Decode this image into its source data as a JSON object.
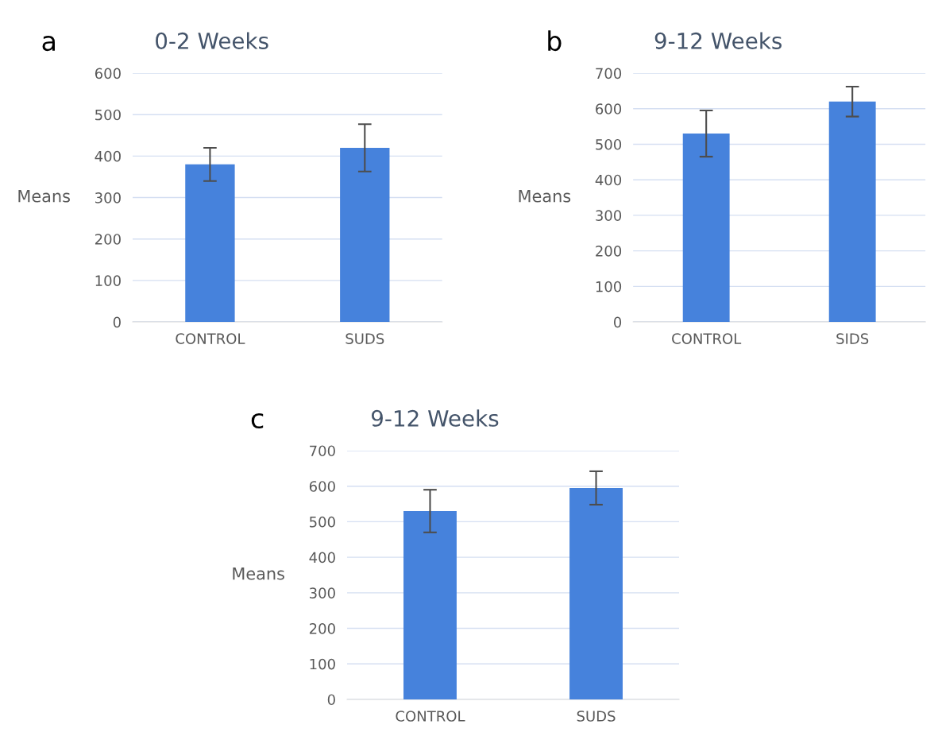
{
  "chart_data": [
    {
      "type": "bar",
      "title": "0-2 Weeks",
      "ylabel": "Means",
      "annotations": [
        "a"
      ],
      "categories": [
        "CONTROL",
        "SUDS"
      ],
      "values": [
        380,
        420
      ],
      "errors": [
        40,
        57
      ],
      "color": "#4682dc",
      "ylim": [
        0,
        600
      ],
      "yticks": [
        0,
        100,
        200,
        300,
        400,
        500,
        600
      ],
      "grid": "y"
    },
    {
      "type": "bar",
      "title": "9-12 Weeks",
      "ylabel": "Means",
      "annotations": [
        "b"
      ],
      "categories": [
        "CONTROL",
        "SIDS"
      ],
      "values": [
        530,
        620
      ],
      "errors": [
        65,
        42
      ],
      "color": "#4682dc",
      "ylim": [
        0,
        700
      ],
      "yticks": [
        0,
        100,
        200,
        300,
        400,
        500,
        600,
        700
      ],
      "grid": "y"
    },
    {
      "type": "bar",
      "title": "9-12 Weeks",
      "ylabel": "Means",
      "annotations": [
        "c"
      ],
      "categories": [
        "CONTROL",
        "SUDS"
      ],
      "values": [
        530,
        595
      ],
      "errors": [
        60,
        47
      ],
      "color": "#4682dc",
      "ylim": [
        0,
        700
      ],
      "yticks": [
        0,
        100,
        200,
        300,
        400,
        500,
        600,
        700
      ],
      "grid": "y"
    }
  ]
}
